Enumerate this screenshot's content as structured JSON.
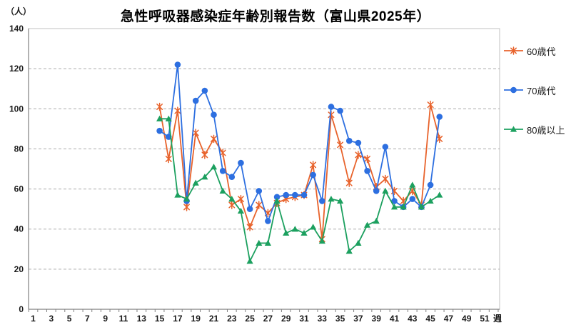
{
  "title": "急性呼吸器感染症年齢別報告数（富山県2025年）",
  "y_axis_unit": "（人）",
  "x_axis_unit": "週",
  "colors": {
    "series_60s": "#e8632c",
    "series_70s": "#2d6fe0",
    "series_80plus": "#1ca05f",
    "gridline": "#ababab",
    "axis": "#808080",
    "border": "#c0c0c0"
  },
  "chart_data": {
    "type": "line",
    "title": "急性呼吸器感染症年齢別報告数（富山県2025年）",
    "ylabel": "（人）",
    "xlabel": "週",
    "ylim": [
      0,
      140
    ],
    "y_ticks": [
      0,
      20,
      40,
      60,
      80,
      100,
      120,
      140
    ],
    "x_axis_weeks_shown": [
      1,
      3,
      5,
      7,
      9,
      11,
      13,
      15,
      17,
      19,
      21,
      23,
      25,
      27,
      29,
      31,
      33,
      35,
      37,
      39,
      41,
      43,
      45,
      47,
      49,
      51
    ],
    "x_weeks": [
      15,
      16,
      17,
      18,
      19,
      20,
      21,
      22,
      23,
      24,
      25,
      26,
      27,
      28,
      29,
      30,
      31,
      32,
      33,
      34,
      35,
      36,
      37,
      38,
      39,
      40,
      41,
      42,
      43,
      44,
      45,
      46
    ],
    "grid": "horizontal-dashed",
    "legend_position": "right",
    "series": [
      {
        "name": "60歳代",
        "marker": "asterisk",
        "color": "#e8632c",
        "values": [
          101,
          75,
          99,
          51,
          88,
          77,
          85,
          78,
          52,
          55,
          41,
          52,
          48,
          53,
          55,
          56,
          57,
          72,
          35,
          97,
          82,
          63,
          77,
          75,
          61,
          65,
          59,
          54,
          59,
          52,
          102,
          85
        ]
      },
      {
        "name": "70歳代",
        "marker": "circle",
        "color": "#2d6fe0",
        "values": [
          89,
          86,
          122,
          54,
          104,
          109,
          97,
          69,
          66,
          73,
          50,
          59,
          44,
          56,
          57,
          57,
          57,
          67,
          54,
          101,
          99,
          84,
          83,
          69,
          59,
          81,
          54,
          51,
          55,
          51,
          62,
          96
        ]
      },
      {
        "name": "80歳以上",
        "marker": "triangle",
        "color": "#1ca05f",
        "values": [
          95,
          95,
          57,
          55,
          63,
          66,
          71,
          59,
          55,
          49,
          24,
          33,
          33,
          54,
          38,
          40,
          38,
          41,
          34,
          55,
          54,
          29,
          33,
          42,
          44,
          59,
          51,
          51,
          62,
          51,
          54,
          57
        ]
      }
    ]
  }
}
